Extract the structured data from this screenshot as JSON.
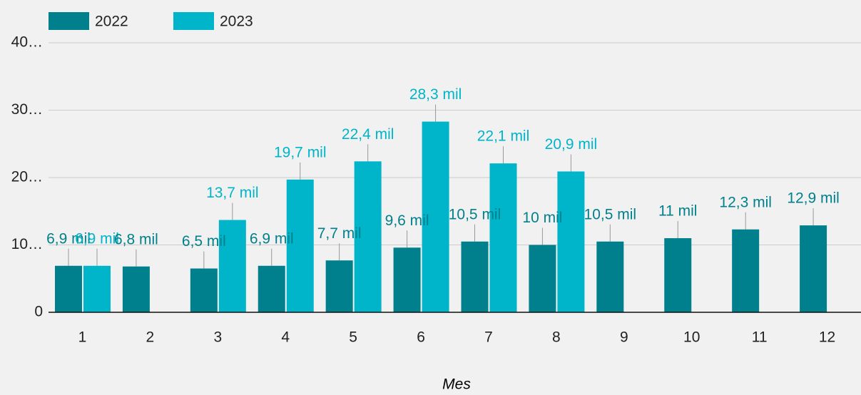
{
  "chart_data": {
    "type": "bar",
    "x_label": "Mes",
    "categories": [
      "1",
      "2",
      "3",
      "4",
      "5",
      "6",
      "7",
      "8",
      "9",
      "10",
      "11",
      "12"
    ],
    "series": [
      {
        "name": "2022",
        "color": "#00808c",
        "values": [
          6.9,
          6.8,
          6.5,
          6.9,
          7.7,
          9.6,
          10.5,
          10,
          10.5,
          11,
          12.3,
          12.9
        ],
        "value_labels": [
          "6,9 mil",
          "6,8 mil",
          "6,5 mil",
          "6,9 mil",
          "7,7 mil",
          "9,6 mil",
          "10,5 mil",
          "10 mil",
          "10,5 mil",
          "11 mil",
          "12,3 mil",
          "12,9 mil"
        ]
      },
      {
        "name": "2023",
        "color": "#00b4c9",
        "values": [
          6.9,
          null,
          13.7,
          19.7,
          22.4,
          28.3,
          22.1,
          20.9,
          null,
          null,
          null,
          null
        ],
        "value_labels": [
          "6,9 mil",
          null,
          "13,7 mil",
          "19,7 mil",
          "22,4 mil",
          "28,3 mil",
          "22,1 mil",
          "20,9 mil",
          null,
          null,
          null,
          null
        ]
      }
    ],
    "ylim": [
      0,
      40
    ],
    "yticks": [
      0,
      {
        "value": 10,
        "label": "10…"
      },
      {
        "value": 20,
        "label": "20…"
      },
      {
        "value": 30,
        "label": "30…"
      },
      {
        "value": 40,
        "label": "40…"
      }
    ],
    "grid": true,
    "legend": "top-left"
  }
}
